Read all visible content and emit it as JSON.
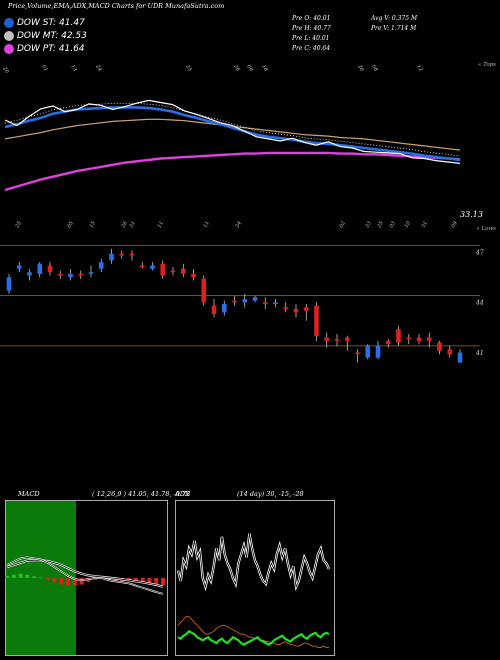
{
  "header": {
    "title": "Price,Volume,EMA,ADX,MACD Charts for UDR MunafaSutra.com"
  },
  "legend": [
    {
      "label": "DOW ST: 41.47",
      "color": "#1f5fd6"
    },
    {
      "label": "DOW MT: 42.53",
      "color": "#c0c0c0"
    },
    {
      "label": "DOW PT: 41.64",
      "color": "#e040e0"
    }
  ],
  "stats": {
    "prev_open": "Pre  O: 40.01",
    "prev_high": "Pre  H: 40.77",
    "prev_low": "Pre  L: 40.01",
    "prev_close": "Pre  C: 40.64",
    "avg_volume": "Avg V: 0.375  M",
    "prev_volume": "Pre  V: 1.714  M"
  },
  "top_labels": {
    "right": "« Tops",
    "lows": "« Lows"
  },
  "chart_data": [
    {
      "type": "line",
      "name": "price-ema-chart",
      "last_price_label": "33.13",
      "series": [
        {
          "name": "",
          "values": [
            44.0,
            43.2,
            44.5,
            45.6,
            46.0,
            45.2,
            45.5,
            46.3,
            46.1,
            45.5,
            45.9,
            46.4,
            46.8,
            46.5,
            46.2,
            45.3,
            44.8,
            44.2,
            43.6,
            43.2,
            42.4,
            41.6,
            41.3,
            41.0,
            41.4,
            40.8,
            40.4,
            40.9,
            40.2,
            40.0,
            39.5,
            39.4,
            39.3,
            39.2,
            38.6,
            38.5,
            38.2,
            38.0,
            37.8
          ]
        },
        {
          "name": "",
          "values": [
            43.0,
            43.4,
            43.9,
            44.3,
            44.9,
            45.2,
            45.5,
            45.6,
            45.7,
            45.8,
            45.8,
            45.8,
            45.7,
            45.5,
            45.2,
            44.7,
            44.3,
            43.8,
            43.4,
            42.9,
            42.4,
            41.9,
            41.6,
            41.4,
            41.2,
            40.9,
            40.7,
            40.6,
            40.4,
            40.2,
            40.0,
            39.8,
            39.6,
            39.4,
            39.2,
            38.9,
            38.7,
            38.5,
            38.3
          ]
        },
        {
          "name": "",
          "values": [
            41.3,
            41.6,
            41.9,
            42.2,
            42.6,
            42.9,
            43.2,
            43.4,
            43.6,
            43.8,
            43.9,
            44.0,
            44.1,
            44.1,
            44.0,
            43.9,
            43.7,
            43.5,
            43.3,
            43.1,
            42.9,
            42.7,
            42.5,
            42.3,
            42.1,
            41.9,
            41.8,
            41.7,
            41.5,
            41.4,
            41.3,
            41.1,
            40.9,
            40.7,
            40.5,
            40.3,
            40.1,
            39.9,
            39.7
          ]
        },
        {
          "name": "",
          "values": [
            34.0,
            34.5,
            35.0,
            35.5,
            35.9,
            36.3,
            36.7,
            37.0,
            37.3,
            37.6,
            37.9,
            38.1,
            38.3,
            38.5,
            38.6,
            38.7,
            38.8,
            38.9,
            39.0,
            39.1,
            39.2,
            39.2,
            39.3,
            39.3,
            39.3,
            39.3,
            39.3,
            39.3,
            39.2,
            39.2,
            39.1,
            39.1,
            39.0,
            38.9,
            38.8,
            38.7,
            38.6,
            38.5,
            38.4
          ]
        }
      ],
      "ylim": [
        30,
        50
      ]
    },
    {
      "type": "candlestick",
      "name": "candle-chart",
      "y_tick_labels": [
        "47",
        "44",
        "41"
      ],
      "y_ticks": [
        47,
        44,
        41
      ],
      "ylim": [
        39.5,
        47.5
      ],
      "candles": [
        {
          "o": 44.3,
          "c": 45.1,
          "h": 45.3,
          "l": 44.1
        },
        {
          "o": 45.6,
          "c": 45.8,
          "h": 46.0,
          "l": 45.4
        },
        {
          "o": 45.2,
          "c": 45.4,
          "h": 45.6,
          "l": 44.9
        },
        {
          "o": 45.3,
          "c": 45.9,
          "h": 46.0,
          "l": 45.1
        },
        {
          "o": 45.8,
          "c": 45.4,
          "h": 46.0,
          "l": 45.2
        },
        {
          "o": 45.3,
          "c": 45.2,
          "h": 45.5,
          "l": 45.0
        },
        {
          "o": 45.1,
          "c": 45.3,
          "h": 45.6,
          "l": 44.9
        },
        {
          "o": 45.3,
          "c": 45.2,
          "h": 45.5,
          "l": 45.0
        },
        {
          "o": 45.3,
          "c": 45.4,
          "h": 45.8,
          "l": 45.1
        },
        {
          "o": 45.6,
          "c": 46.0,
          "h": 46.2,
          "l": 45.4
        },
        {
          "o": 46.1,
          "c": 46.5,
          "h": 46.8,
          "l": 45.9
        },
        {
          "o": 46.5,
          "c": 46.4,
          "h": 46.7,
          "l": 46.2
        },
        {
          "o": 46.5,
          "c": 46.4,
          "h": 46.7,
          "l": 46.1
        },
        {
          "o": 45.8,
          "c": 45.7,
          "h": 46.0,
          "l": 45.6
        },
        {
          "o": 45.6,
          "c": 45.8,
          "h": 46.0,
          "l": 45.5
        },
        {
          "o": 45.9,
          "c": 45.2,
          "h": 46.1,
          "l": 45.0
        },
        {
          "o": 45.5,
          "c": 45.4,
          "h": 45.7,
          "l": 45.2
        },
        {
          "o": 45.6,
          "c": 45.3,
          "h": 45.9,
          "l": 45.1
        },
        {
          "o": 45.3,
          "c": 45.1,
          "h": 45.6,
          "l": 44.9
        },
        {
          "o": 45.0,
          "c": 43.6,
          "h": 45.2,
          "l": 43.4
        },
        {
          "o": 43.4,
          "c": 42.9,
          "h": 43.8,
          "l": 42.7
        },
        {
          "o": 43.0,
          "c": 43.5,
          "h": 43.7,
          "l": 42.8
        },
        {
          "o": 43.7,
          "c": 43.6,
          "h": 44.0,
          "l": 43.4
        },
        {
          "o": 43.6,
          "c": 43.8,
          "h": 44.1,
          "l": 43.3
        },
        {
          "o": 43.7,
          "c": 43.9,
          "h": 44.0,
          "l": 43.6
        },
        {
          "o": 43.6,
          "c": 43.5,
          "h": 43.9,
          "l": 43.2
        },
        {
          "o": 43.5,
          "c": 43.6,
          "h": 43.8,
          "l": 43.3
        },
        {
          "o": 43.3,
          "c": 43.2,
          "h": 43.6,
          "l": 43.0
        },
        {
          "o": 43.2,
          "c": 43.0,
          "h": 43.5,
          "l": 42.7
        },
        {
          "o": 43.3,
          "c": 43.1,
          "h": 43.5,
          "l": 42.5
        },
        {
          "o": 43.4,
          "c": 41.6,
          "h": 43.6,
          "l": 41.3
        },
        {
          "o": 41.5,
          "c": 41.3,
          "h": 41.8,
          "l": 40.9
        },
        {
          "o": 41.4,
          "c": 41.3,
          "h": 41.7,
          "l": 41.0
        },
        {
          "o": 41.5,
          "c": 41.3,
          "h": 41.6,
          "l": 40.7
        },
        {
          "o": 40.6,
          "c": 40.5,
          "h": 40.8,
          "l": 40.0
        },
        {
          "o": 40.3,
          "c": 41.0,
          "h": 41.1,
          "l": 40.2
        },
        {
          "o": 40.3,
          "c": 41.0,
          "h": 41.3,
          "l": 40.2
        },
        {
          "o": 41.3,
          "c": 41.1,
          "h": 41.4,
          "l": 40.9
        },
        {
          "o": 42.0,
          "c": 41.2,
          "h": 42.2,
          "l": 41.0
        },
        {
          "o": 41.5,
          "c": 41.4,
          "h": 41.7,
          "l": 41.1
        },
        {
          "o": 41.5,
          "c": 41.3,
          "h": 41.7,
          "l": 41.1
        },
        {
          "o": 41.5,
          "c": 41.3,
          "h": 41.8,
          "l": 40.9
        },
        {
          "o": 41.2,
          "c": 40.7,
          "h": 41.3,
          "l": 40.5
        },
        {
          "o": 40.8,
          "c": 40.5,
          "h": 41.0,
          "l": 40.3
        },
        {
          "o": 40.0,
          "c": 40.6,
          "h": 40.8,
          "l": 40.0
        }
      ]
    },
    {
      "type": "line",
      "name": "macd-chart",
      "title": "MACD",
      "params": "( 12,26,9 ) 41.05,  41.78,  -0.73",
      "series": [
        {
          "name": "",
          "values": [
            0.6,
            0.75,
            0.9,
            0.95,
            0.9,
            0.85,
            0.7,
            0.5,
            0.3,
            0.1,
            -0.05,
            -0.1,
            -0.05,
            0.0,
            0.0,
            -0.1,
            -0.15,
            -0.2,
            -0.25,
            -0.35,
            -0.45,
            -0.55,
            -0.65,
            -0.73
          ]
        },
        {
          "name": "",
          "values": [
            0.5,
            0.6,
            0.7,
            0.8,
            0.82,
            0.82,
            0.78,
            0.7,
            0.6,
            0.45,
            0.3,
            0.2,
            0.12,
            0.08,
            0.05,
            0.02,
            -0.02,
            -0.06,
            -0.1,
            -0.15,
            -0.2,
            -0.26,
            -0.32,
            -0.4
          ]
        }
      ],
      "histogram": [
        0.1,
        0.15,
        0.2,
        0.15,
        0.08,
        0.03,
        -0.08,
        -0.2,
        -0.3,
        -0.35,
        -0.35,
        -0.3,
        -0.17,
        -0.08,
        -0.05,
        -0.12,
        -0.13,
        -0.14,
        -0.15,
        -0.2,
        -0.25,
        -0.29,
        -0.33,
        -0.33
      ],
      "ylim": [
        -3.5,
        3.5
      ]
    },
    {
      "type": "line",
      "name": "adx-chart",
      "title": "ADX",
      "params": "(14 day) 30, -15, -28",
      "series": [
        {
          "name": "",
          "values": [
            55,
            48,
            62,
            58,
            70,
            66,
            75,
            64,
            68,
            50,
            44,
            52,
            48,
            58,
            70,
            62,
            78,
            66,
            60,
            56,
            50,
            46,
            60,
            66,
            72,
            64,
            80,
            70,
            62,
            58,
            52,
            48,
            46,
            54,
            60,
            56,
            66,
            72,
            64,
            70,
            60,
            52,
            58,
            44,
            48,
            56,
            64,
            60,
            54,
            50,
            58,
            66,
            70,
            62,
            60,
            56
          ]
        },
        {
          "name": "",
          "values": [
            10,
            9,
            11,
            12,
            14,
            13,
            12,
            10,
            9,
            8,
            9,
            10,
            8,
            7,
            6,
            8,
            9,
            7,
            6,
            8,
            10,
            9,
            8,
            6,
            5,
            6,
            7,
            8,
            9,
            10,
            8,
            7,
            6,
            5,
            6,
            8,
            9,
            10,
            11,
            9,
            8,
            7,
            9,
            10,
            11,
            12,
            10,
            9,
            11,
            12,
            13,
            11,
            10,
            12,
            13,
            12
          ]
        },
        {
          "name": "",
          "values": [
            18,
            20,
            22,
            24,
            24,
            22,
            20,
            18,
            16,
            14,
            12,
            12,
            13,
            14,
            16,
            17,
            18,
            18,
            17,
            16,
            15,
            14,
            13,
            12,
            12,
            11,
            10,
            10,
            9,
            9,
            8,
            8,
            7,
            7,
            6,
            6,
            5,
            5,
            6,
            7,
            6,
            5,
            5,
            4,
            4,
            5,
            6,
            6,
            5,
            4,
            4,
            3,
            3,
            4,
            3,
            3
          ]
        }
      ],
      "ylim": [
        0,
        100
      ]
    }
  ]
}
